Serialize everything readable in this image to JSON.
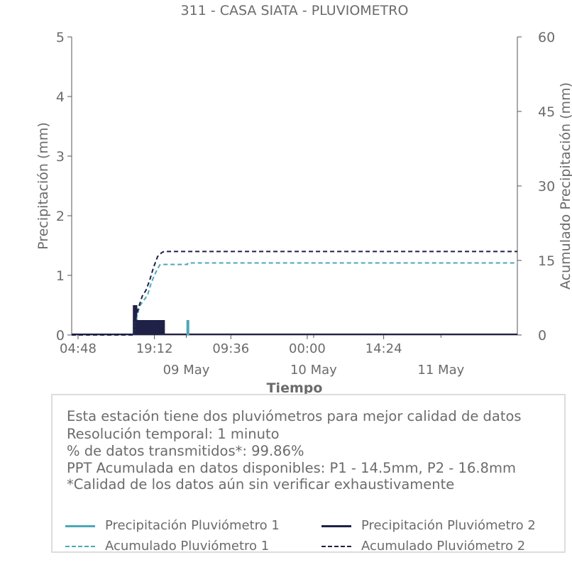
{
  "chart_data": {
    "type": "line",
    "title": "311 - CASA SIATA - PLUVIOMETRO",
    "xlabel": "Tiempo",
    "ylabel": "Precipitación (mm)",
    "ylabel_right": "Acumulado Precipitación (mm)",
    "ylim": [
      0,
      5
    ],
    "ylim_right": [
      0,
      60
    ],
    "yticks": [
      "0",
      "1",
      "2",
      "3",
      "4",
      "5"
    ],
    "yticks_right": [
      "0",
      "15",
      "30",
      "45",
      "60"
    ],
    "xticks": [
      "04:48",
      "19:12",
      "09:36",
      "00:00",
      "14:24"
    ],
    "xticks_date": [
      "09 May",
      "10 May",
      "11 May"
    ],
    "x_unit": "hours",
    "xlim": [
      0,
      84
    ],
    "series": [
      {
        "name": "Precipitación Pluviómetro 1",
        "axis": "left",
        "style": "bar",
        "color": "#4aa8b8",
        "points": [
          [
            11.8,
            0.25
          ],
          [
            12.3,
            0.25
          ],
          [
            12.9,
            0.25
          ],
          [
            13.6,
            0.25
          ],
          [
            14.3,
            0.25
          ],
          [
            15.0,
            0.25
          ],
          [
            15.7,
            0.25
          ],
          [
            16.5,
            0.25
          ],
          [
            17.2,
            0.25
          ],
          [
            21.9,
            0.25
          ]
        ]
      },
      {
        "name": "Precipitación Pluviómetro 2",
        "axis": "left",
        "style": "bar",
        "color": "#1f2147",
        "points": [
          [
            11.8,
            0.5
          ],
          [
            12.1,
            0.5
          ],
          [
            12.4,
            0.25
          ],
          [
            12.8,
            0.25
          ],
          [
            13.2,
            0.25
          ],
          [
            13.6,
            0.25
          ],
          [
            14.0,
            0.25
          ],
          [
            14.4,
            0.25
          ],
          [
            14.8,
            0.25
          ],
          [
            15.2,
            0.25
          ],
          [
            15.6,
            0.25
          ],
          [
            16.0,
            0.25
          ],
          [
            16.4,
            0.25
          ],
          [
            16.8,
            0.25
          ],
          [
            17.3,
            0.25
          ]
        ]
      },
      {
        "name": "Acumulado Pluviómetro 1",
        "axis": "right",
        "style": "dashed",
        "color": "#4aa8b8",
        "points": [
          [
            0,
            0
          ],
          [
            11.8,
            0
          ],
          [
            12.0,
            2.5
          ],
          [
            12.8,
            5.8
          ],
          [
            13.6,
            7.0
          ],
          [
            14.3,
            8.0
          ],
          [
            15.0,
            10.5
          ],
          [
            15.8,
            12.5
          ],
          [
            16.6,
            14.1
          ],
          [
            17.3,
            14.2
          ],
          [
            21.8,
            14.2
          ],
          [
            21.9,
            14.5
          ],
          [
            84,
            14.5
          ]
        ]
      },
      {
        "name": "Acumulado Pluviómetro 2",
        "axis": "right",
        "style": "dashed",
        "color": "#1f2147",
        "points": [
          [
            0,
            0
          ],
          [
            11.8,
            0
          ],
          [
            12.1,
            3.5
          ],
          [
            12.6,
            5.5
          ],
          [
            13.3,
            7.8
          ],
          [
            14.0,
            9.0
          ],
          [
            14.7,
            11.0
          ],
          [
            15.4,
            13.5
          ],
          [
            16.2,
            15.8
          ],
          [
            17.0,
            16.6
          ],
          [
            17.4,
            16.8
          ],
          [
            84,
            16.8
          ]
        ]
      }
    ]
  },
  "info": {
    "lines": [
      "Esta estación tiene dos pluviómetros para mejor calidad de datos",
      "Resolución temporal: 1 minuto",
      "% de datos transmitidos*: 99.86%",
      "PPT Acumulada en datos disponibles: P1 - 14.5mm, P2 - 16.8mm",
      "*Calidad de los datos aún sin verificar exhaustivamente"
    ]
  },
  "legend": {
    "items": [
      {
        "label": "Precipitación Pluviómetro 1",
        "color": "#4aa8b8",
        "style": "solid"
      },
      {
        "label": "Precipitación Pluviómetro 2",
        "color": "#1f2147",
        "style": "solid"
      },
      {
        "label": "Acumulado Pluviómetro 1",
        "color": "#4aa8b8",
        "style": "dashed"
      },
      {
        "label": "Acumulado Pluviómetro 2",
        "color": "#1f2147",
        "style": "dashed"
      }
    ]
  }
}
